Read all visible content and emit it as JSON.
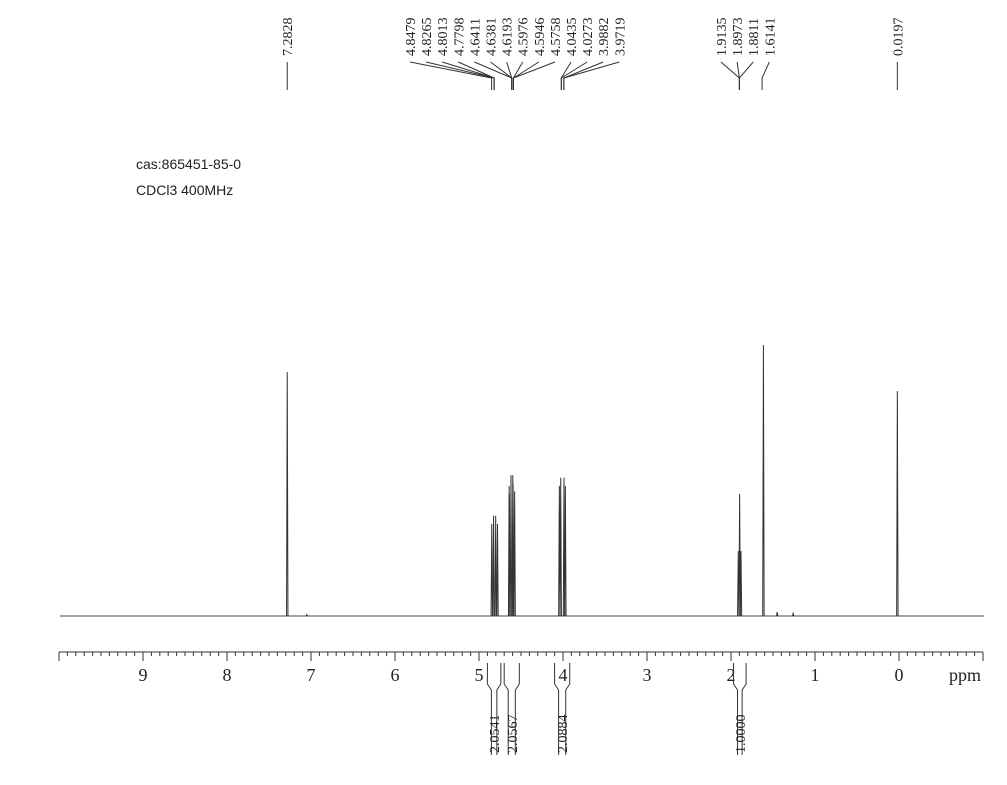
{
  "chart_data": {
    "type": "line",
    "title": "",
    "info_lines": [
      "cas:865451-85-0",
      "CDCl3 400MHz"
    ],
    "xlabel": "ppm",
    "xlim": [
      10.0,
      -1.0
    ],
    "x_ticks": [
      9,
      8,
      7,
      6,
      5,
      4,
      3,
      2,
      1,
      0
    ],
    "x_tick_labels": [
      "9",
      "8",
      "7",
      "6",
      "5",
      "4",
      "3",
      "2",
      "1",
      "0"
    ],
    "peak_labels": [
      "7.2828",
      "4.8479",
      "4.8265",
      "4.8013",
      "4.7798",
      "4.6411",
      "4.6381",
      "4.6193",
      "4.5976",
      "4.5946",
      "4.5758",
      "4.0435",
      "4.0273",
      "3.9882",
      "3.9719",
      "1.9135",
      "1.8973",
      "1.8811",
      "1.6141",
      "0.0197"
    ],
    "peaks": [
      {
        "ppm": 7.2828,
        "intensity": 0.9
      },
      {
        "ppm": 4.8479,
        "intensity": 0.34
      },
      {
        "ppm": 4.8265,
        "intensity": 0.37
      },
      {
        "ppm": 4.8013,
        "intensity": 0.37
      },
      {
        "ppm": 4.7798,
        "intensity": 0.34
      },
      {
        "ppm": 4.6411,
        "intensity": 0.48
      },
      {
        "ppm": 4.6381,
        "intensity": 0.45
      },
      {
        "ppm": 4.6193,
        "intensity": 0.52
      },
      {
        "ppm": 4.5976,
        "intensity": 0.52
      },
      {
        "ppm": 4.5946,
        "intensity": 0.49
      },
      {
        "ppm": 4.5758,
        "intensity": 0.46
      },
      {
        "ppm": 4.0435,
        "intensity": 0.48
      },
      {
        "ppm": 4.0273,
        "intensity": 0.51
      },
      {
        "ppm": 3.9882,
        "intensity": 0.51
      },
      {
        "ppm": 3.9719,
        "intensity": 0.48
      },
      {
        "ppm": 1.9135,
        "intensity": 0.24
      },
      {
        "ppm": 1.8973,
        "intensity": 0.45
      },
      {
        "ppm": 1.8811,
        "intensity": 0.24
      },
      {
        "ppm": 1.6141,
        "intensity": 1.0
      },
      {
        "ppm": 0.0197,
        "intensity": 0.83
      }
    ],
    "minor_peaks": [
      {
        "ppm": 1.45,
        "intensity": 0.015
      },
      {
        "ppm": 1.26,
        "intensity": 0.01
      },
      {
        "ppm": 7.05,
        "intensity": 0.005
      }
    ],
    "peak_label_groups": [
      {
        "labels": [
          "7.2828"
        ],
        "anchor_ppm": 7.2828
      },
      {
        "labels": [
          "4.8479",
          "4.8265",
          "4.8013",
          "4.7798",
          "4.6411",
          "4.6381",
          "4.6193",
          "4.5976",
          "4.5946",
          "4.5758",
          "4.0435",
          "4.0273",
          "3.9882",
          "3.9719"
        ],
        "anchor_ppms": [
          4.85,
          4.82,
          4.61,
          4.59,
          4.02,
          3.99
        ]
      },
      {
        "labels": [
          "1.9135",
          "1.8973",
          "1.8811",
          "1.6141"
        ],
        "anchor_ppms": [
          1.9,
          1.63
        ]
      },
      {
        "labels": [
          "0.0197"
        ],
        "anchor_ppm": 0.0197
      }
    ],
    "integrals": [
      {
        "value": "2.0541",
        "from_ppm": 4.9,
        "to_ppm": 4.74
      },
      {
        "value": "2.0567",
        "from_ppm": 4.7,
        "to_ppm": 4.52
      },
      {
        "value": "2.0884",
        "from_ppm": 4.1,
        "to_ppm": 3.92
      },
      {
        "value": "1.0000",
        "from_ppm": 1.97,
        "to_ppm": 1.82
      }
    ],
    "grid": false,
    "legend": "none"
  }
}
